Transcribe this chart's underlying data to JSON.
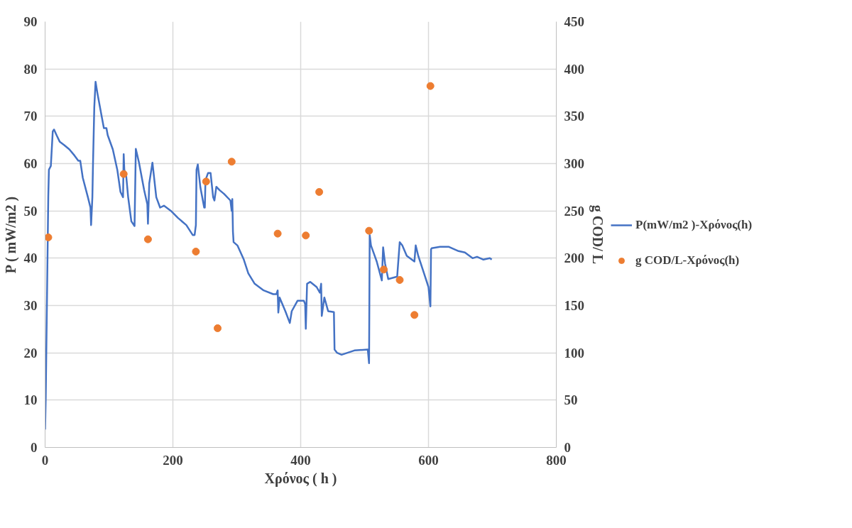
{
  "chart_data": {
    "type": "line",
    "xlabel": "Χρόνος ( h )",
    "ylabel": "P ( mW/m2 )",
    "y2label": "g COD/ L",
    "xlim": [
      0,
      800
    ],
    "xticks": [
      0,
      200,
      400,
      600,
      800
    ],
    "ylim": [
      0,
      90
    ],
    "yticks": [
      0,
      10,
      20,
      30,
      40,
      50,
      60,
      70,
      80,
      90
    ],
    "y2lim": [
      0,
      450
    ],
    "y2ticks": [
      0,
      50,
      100,
      150,
      200,
      250,
      300,
      350,
      400,
      450
    ],
    "grid": true,
    "legend": "right",
    "line_style": "solid",
    "series": [
      {
        "name": "P(mW/m2 )-Χρόνος(h)",
        "color": "#4472c4",
        "marker": "none",
        "x": [
          0,
          1,
          5,
          6,
          9,
          12,
          14,
          18,
          23,
          30,
          38,
          46,
          52,
          55,
          59,
          67,
          71,
          72,
          74,
          75,
          77,
          79,
          82,
          88,
          92,
          96,
          98,
          106,
          113,
          118,
          122,
          123,
          124,
          127,
          130,
          135,
          140,
          142,
          147,
          155,
          160,
          161,
          163,
          168,
          174,
          180,
          186,
          197,
          208,
          221,
          231,
          234,
          236,
          237,
          239,
          243,
          249,
          250,
          251,
          255,
          259,
          263,
          265,
          268,
          273,
          280,
          290,
          292,
          293,
          294,
          295,
          301,
          311,
          318,
          328,
          342,
          357,
          362,
          364,
          365,
          367,
          376,
          383,
          386,
          395,
          405,
          407,
          408,
          410,
          415,
          425,
          430,
          432,
          433,
          437,
          443,
          452,
          453,
          457,
          464,
          484,
          505,
          507,
          508,
          510,
          514,
          519,
          524,
          527,
          529,
          532,
          537,
          551,
          555,
          559,
          566,
          578,
          580,
          584,
          593,
          600,
          603,
          604,
          605,
          618,
          632,
          647,
          657,
          669,
          676,
          686,
          696,
          699
        ],
        "values": [
          3.8,
          10.5,
          53,
          58.7,
          59.5,
          66.8,
          67.2,
          66,
          64.6,
          63.9,
          63,
          61.7,
          60.6,
          60.6,
          57,
          52.9,
          50.7,
          47,
          52.9,
          60,
          71.9,
          77.3,
          74.8,
          70.4,
          67.5,
          67.5,
          66,
          63,
          58.7,
          54,
          52.9,
          62,
          58.7,
          57.3,
          52.9,
          47.8,
          46.8,
          63.1,
          60.2,
          54.4,
          51.4,
          47.3,
          55.8,
          60.2,
          52.9,
          50.7,
          51.1,
          50,
          48.5,
          47,
          44.9,
          44.9,
          47,
          58.7,
          59.8,
          55,
          50.7,
          50.7,
          56.5,
          58,
          58,
          52.9,
          52.2,
          55.1,
          54.4,
          53.6,
          52.2,
          50,
          52.5,
          45.6,
          43.4,
          42.7,
          39.7,
          36.8,
          34.6,
          33.2,
          32.4,
          32.4,
          33.2,
          28.5,
          31.7,
          28.8,
          26.3,
          28.8,
          31,
          31,
          30.3,
          25.1,
          34.6,
          35,
          33.9,
          32.7,
          34.6,
          27.8,
          31.7,
          28.8,
          28.6,
          20.7,
          20,
          19.6,
          20.5,
          20.7,
          17.8,
          44.9,
          42.7,
          41.2,
          39.3,
          36.8,
          35.3,
          42.3,
          38.9,
          35.6,
          36.1,
          43.4,
          42.7,
          40.5,
          39.3,
          42.7,
          40.5,
          36.8,
          33.9,
          29.8,
          41.9,
          42.1,
          42.4,
          42.4,
          41.5,
          41.2,
          40,
          40.3,
          39.7,
          40,
          39.7
        ]
      },
      {
        "name": "g COD/L-Χρόνος(h)",
        "type": "scatter",
        "axis": "y2",
        "color": "#ed7d31",
        "marker": "circle",
        "x": [
          5,
          123,
          161,
          236,
          252,
          270,
          292,
          364,
          408,
          429,
          507,
          530,
          555,
          578,
          603
        ],
        "values": [
          222,
          289,
          220,
          207,
          281,
          126,
          302,
          226,
          224,
          270,
          229,
          188,
          177,
          140,
          382
        ]
      }
    ]
  }
}
